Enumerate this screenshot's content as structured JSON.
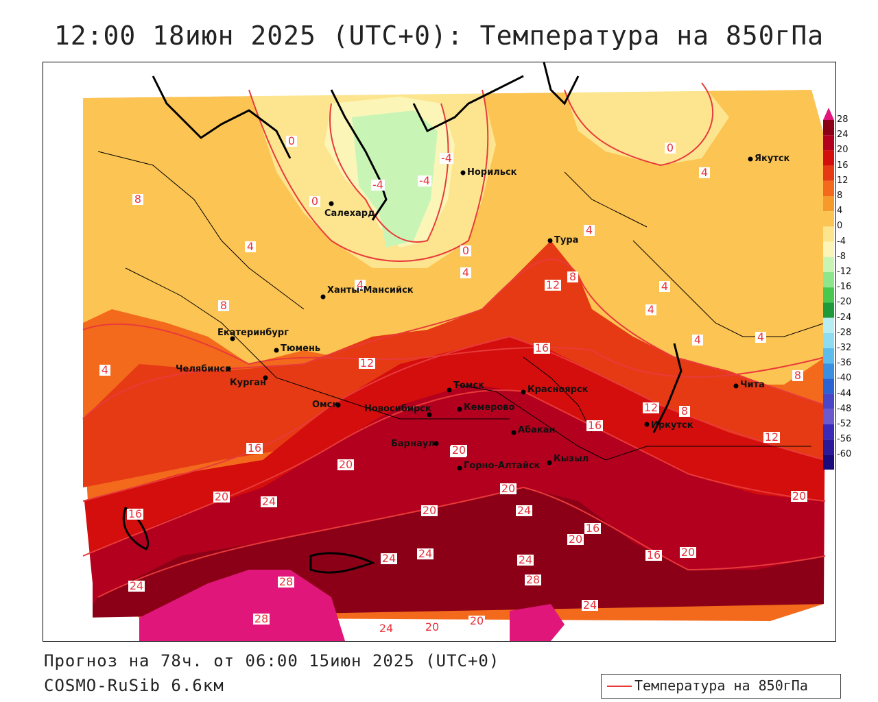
{
  "title": "12:00 18июн 2025 (UTC+0): Температура на 850гПа",
  "footer": {
    "forecast": "Прогноз на 78ч. от 06:00 15июн 2025 (UTC+0)",
    "model": "COSMO-RuSib 6.6км"
  },
  "legend": {
    "label": "Температура на 850гПа",
    "line_color": "#e83a3a"
  },
  "colorbar": {
    "ticks": [
      "28",
      "24",
      "20",
      "16",
      "12",
      "8",
      "4",
      "0",
      "-4",
      "-8",
      "-12",
      "-16",
      "-20",
      "-24",
      "-28",
      "-32",
      "-36",
      "-40",
      "-44",
      "-48",
      "-52",
      "-56",
      "-60"
    ],
    "colors": [
      "#8b0016",
      "#b3001e",
      "#d40d0d",
      "#e63a14",
      "#f36a1c",
      "#f79a2c",
      "#fcc452",
      "#fde58f",
      "#fbf6b8",
      "#c8f5b6",
      "#8de58c",
      "#48c84e",
      "#1e9a3a",
      "#b8eef2",
      "#8ddcf0",
      "#5cbcee",
      "#3a8fe0",
      "#2a64d4",
      "#4a46c8",
      "#6a5acd",
      "#3a2ab8",
      "#2a1a9a",
      "#1a0a7a"
    ]
  },
  "cities": [
    {
      "name": "Норильск"
    },
    {
      "name": "Якутск"
    },
    {
      "name": "Салехард"
    },
    {
      "name": "Тура"
    },
    {
      "name": "Ханты-Мансийск"
    },
    {
      "name": "Екатеринбург"
    },
    {
      "name": "Тюмень"
    },
    {
      "name": "Челябинск"
    },
    {
      "name": "Курган"
    },
    {
      "name": "Омск"
    },
    {
      "name": "Новосибирск"
    },
    {
      "name": "Томск"
    },
    {
      "name": "Красноярск"
    },
    {
      "name": "Кемерово"
    },
    {
      "name": "Абакан"
    },
    {
      "name": "Барнаул"
    },
    {
      "name": "Горно-Алтайск"
    },
    {
      "name": "Кызыл"
    },
    {
      "name": "Иркутск"
    },
    {
      "name": "Чита"
    }
  ],
  "isotherm_labels": [
    "0",
    "0",
    "4",
    "-4",
    "-4",
    "-4",
    "0",
    "8",
    "4",
    "4",
    "0",
    "4",
    "4",
    "8",
    "12",
    "8",
    "4",
    "4",
    "4",
    "4",
    "4",
    "8",
    "12",
    "16",
    "16",
    "20",
    "20",
    "20",
    "24",
    "24",
    "24",
    "24",
    "28",
    "28",
    "28",
    "24",
    "20",
    "20",
    "16",
    "12",
    "16",
    "20",
    "20",
    "24",
    "20",
    "24",
    "20",
    "24",
    "16",
    "16",
    "20",
    "20",
    "12",
    "8",
    "8"
  ]
}
